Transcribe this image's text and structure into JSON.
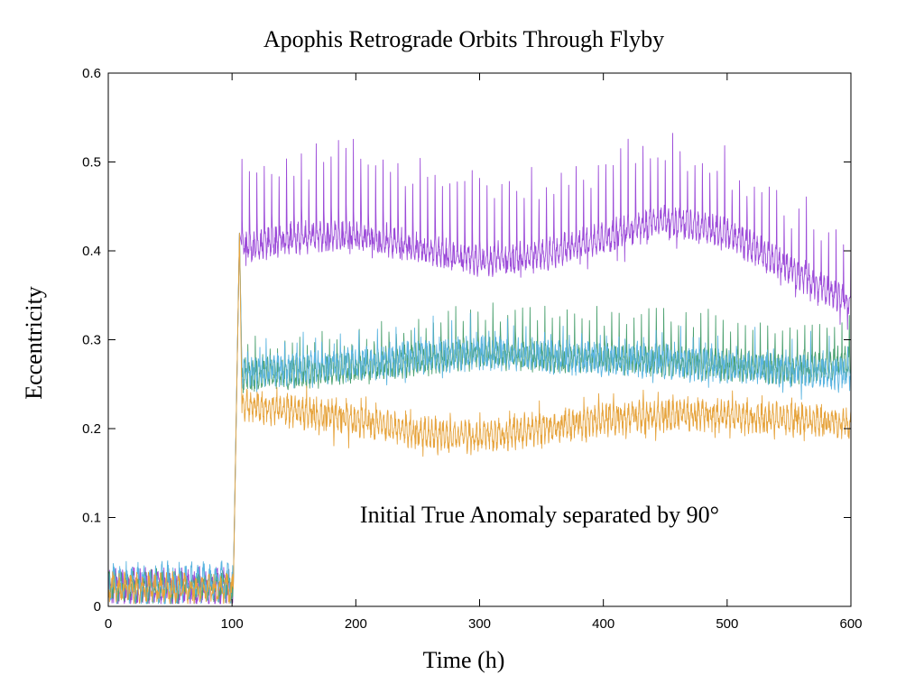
{
  "chart_data": {
    "type": "line",
    "title": "Apophis Retrograde Orbits Through Flyby",
    "xlabel": "Time (h)",
    "ylabel": "Eccentricity",
    "xlim": [
      0,
      600
    ],
    "ylim": [
      0,
      0.6
    ],
    "x_ticks": [
      0,
      100,
      200,
      300,
      400,
      500,
      600
    ],
    "y_ticks": [
      0,
      0.1,
      0.2,
      0.3,
      0.4,
      0.5,
      0.6
    ],
    "x_tick_labels": [
      "0",
      "100",
      "200",
      "300",
      "400",
      "500",
      "600"
    ],
    "y_tick_labels": [
      "0",
      "0.1",
      "0.2",
      "0.3",
      "0.4",
      "0.5",
      "0.6"
    ],
    "grid": false,
    "legend": "none",
    "annotation": "Initial True Anomaly separated by 90°",
    "flyby_time": 105,
    "series": [
      {
        "name": "purple",
        "color": "#9b4ad8",
        "pre_mean": 0.022,
        "pre_amp": 0.018,
        "trend_x": [
          108,
          150,
          200,
          250,
          300,
          350,
          400,
          450,
          500,
          550,
          600
        ],
        "trend_y": [
          0.405,
          0.415,
          0.42,
          0.405,
          0.39,
          0.395,
          0.415,
          0.435,
          0.42,
          0.38,
          0.34
        ],
        "spike_height": 0.09,
        "spike_period": 6,
        "noise": 0.012
      },
      {
        "name": "green",
        "color": "#4aa06e",
        "pre_mean": 0.022,
        "pre_amp": 0.016,
        "trend_x": [
          108,
          150,
          200,
          250,
          300,
          350,
          400,
          450,
          500,
          550,
          600
        ],
        "trend_y": [
          0.26,
          0.262,
          0.268,
          0.278,
          0.285,
          0.282,
          0.28,
          0.278,
          0.272,
          0.268,
          0.275
        ],
        "spike_height": 0.05,
        "spike_period": 6,
        "noise": 0.012
      },
      {
        "name": "blue",
        "color": "#5ab4e0",
        "pre_mean": 0.026,
        "pre_amp": 0.02,
        "trend_x": [
          108,
          150,
          200,
          250,
          300,
          350,
          400,
          450,
          500,
          550,
          600
        ],
        "trend_y": [
          0.265,
          0.268,
          0.272,
          0.28,
          0.285,
          0.282,
          0.278,
          0.276,
          0.27,
          0.265,
          0.262
        ],
        "spike_height": 0.045,
        "spike_period": 5,
        "noise": 0.012
      },
      {
        "name": "orange",
        "color": "#e6a33c",
        "pre_mean": 0.02,
        "pre_amp": 0.015,
        "trend_x": [
          108,
          150,
          200,
          250,
          300,
          350,
          400,
          450,
          500,
          550,
          600
        ],
        "trend_y": [
          0.225,
          0.22,
          0.21,
          0.195,
          0.19,
          0.2,
          0.21,
          0.215,
          0.215,
          0.21,
          0.205
        ],
        "spike_height": 0.04,
        "spike_period": 4,
        "noise": 0.012
      }
    ]
  }
}
